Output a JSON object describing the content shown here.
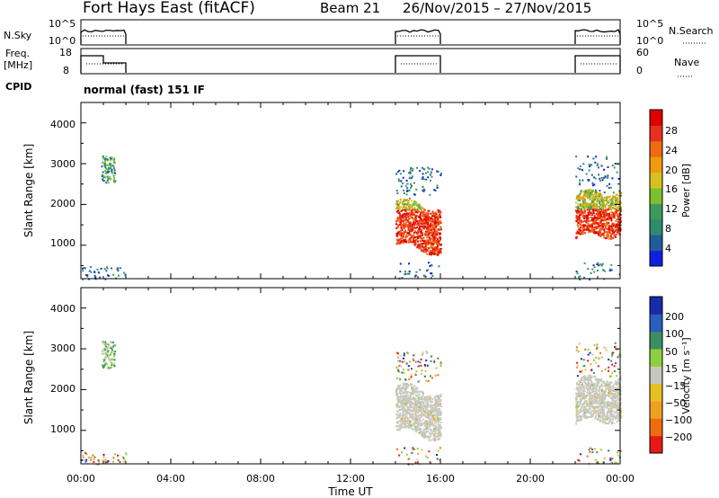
{
  "header": {
    "station": "Fort Hays East (fitACF)",
    "beam": "Beam 21",
    "date_range": "26/Nov/2015 – 27/Nov/2015"
  },
  "top_panels": {
    "nsky": {
      "label": "N.Sky",
      "yticks": [
        "10^5",
        "10^0"
      ],
      "right_label": "N.Search",
      "right_ticks": [
        "10^5",
        "10^0"
      ]
    },
    "freq": {
      "label_line1": "Freq.",
      "label_line2": "[MHz]",
      "yticks": [
        "18",
        "8"
      ],
      "right_label": "Nave",
      "right_ticks": [
        "60",
        "0"
      ]
    },
    "cpid": {
      "label": "CPID",
      "mode_text": "normal (fast) 151 IF"
    }
  },
  "colors": {
    "power": [
      "#1020e0",
      "#205c9c",
      "#2e8b6e",
      "#3e9a5a",
      "#7dbf2c",
      "#d8c020",
      "#f09a10",
      "#f06a10",
      "#e83020",
      "#e00000"
    ],
    "velocity": [
      "#1a2aa8",
      "#2a5ec0",
      "#3c8f60",
      "#8cd040",
      "#c8c8c0",
      "#e6c020",
      "#f0a020",
      "#f06a10",
      "#e81818"
    ]
  },
  "chart_data": [
    {
      "type": "heatmap",
      "name_panel": "power",
      "ylabel": "Slant Range [km]",
      "yticks": [
        "4000",
        "3000",
        "2000",
        "1000"
      ],
      "ylim": [
        180,
        4500
      ],
      "xlim_hours": [
        0,
        24
      ],
      "colorbar": {
        "label": "Power [dB]",
        "ticks": [
          "28",
          "24",
          "20",
          "16",
          "12",
          "8",
          "4"
        ],
        "range": [
          0,
          32
        ]
      },
      "active_intervals_UT": [
        [
          0.0,
          2.0
        ],
        [
          14.0,
          16.0
        ],
        [
          22.0,
          24.0
        ]
      ],
      "echo_regions": [
        {
          "t": [
            0.9,
            1.5
          ],
          "range_km": [
            2550,
            3200
          ],
          "typical": "8-14 dB"
        },
        {
          "t": [
            14.0,
            16.0
          ],
          "range_km": [
            1100,
            2200
          ],
          "typical": "20-32 dB"
        },
        {
          "t": [
            22.0,
            24.0
          ],
          "range_km": [
            1250,
            2300
          ],
          "typical": "20-32 dB"
        }
      ]
    },
    {
      "type": "heatmap",
      "name_panel": "velocity",
      "ylabel": "Slant Range [km]",
      "yticks": [
        "4000",
        "3000",
        "2000",
        "1000"
      ],
      "ylim": [
        180,
        4500
      ],
      "xlim_hours": [
        0,
        24
      ],
      "colorbar": {
        "label": "Velocity [m s⁻¹]",
        "ticks": [
          "200",
          "100",
          "50",
          "15",
          "−15",
          "−50",
          "−100",
          "−200"
        ],
        "range": [
          -250,
          250
        ]
      },
      "echo_regions": [
        {
          "t": [
            0.9,
            1.5
          ],
          "range_km": [
            2550,
            3200
          ],
          "typical": "15 to 100 m/s"
        },
        {
          "t": [
            14.0,
            16.0
          ],
          "range_km": [
            1100,
            2200
          ],
          "typical": "ground scatter"
        },
        {
          "t": [
            22.0,
            24.0
          ],
          "range_km": [
            1250,
            2300
          ],
          "typical": "ground scatter"
        }
      ]
    }
  ],
  "xaxis": {
    "ticks": [
      "00:00",
      "04:00",
      "08:00",
      "12:00",
      "16:00",
      "20:00",
      "00:00"
    ],
    "label": "Time UT"
  }
}
